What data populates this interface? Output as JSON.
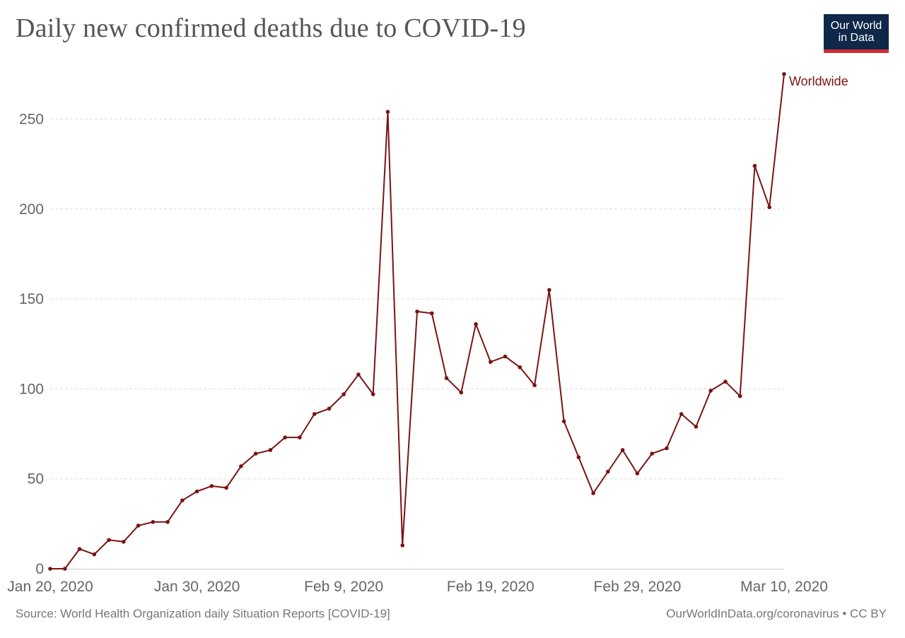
{
  "title": "Daily new confirmed deaths due to COVID-19",
  "logo": {
    "line1": "Our World",
    "line2": "in Data"
  },
  "footer": {
    "source": "Source: World Health Organization daily Situation Reports [COVID-19]",
    "credit": "OurWorldInData.org/coronavirus • CC BY"
  },
  "colors": {
    "line": "#7a1414",
    "grid": "#dddddd",
    "axis": "#cccccc",
    "tick_text": "#666666",
    "logo_bg": "#0f2849",
    "logo_bar": "#d42b32"
  },
  "chart_data": {
    "type": "line",
    "title": "Daily new confirmed deaths due to COVID-19",
    "xlabel": "",
    "ylabel": "",
    "ylim": [
      0,
      275
    ],
    "yticks": [
      0,
      50,
      100,
      150,
      200,
      250
    ],
    "grid": "horizontal dashed",
    "legend": "inline label at line end",
    "x_ticks": [
      "Jan 20, 2020",
      "Jan 30, 2020",
      "Feb 9, 2020",
      "Feb 19, 2020",
      "Feb 29, 2020",
      "Mar 10, 2020"
    ],
    "x_start": "2020-01-20",
    "x_end": "2020-03-10",
    "series": [
      {
        "name": "Worldwide",
        "color": "#7a1414",
        "values": [
          0,
          0,
          11,
          8,
          16,
          15,
          24,
          26,
          26,
          38,
          43,
          46,
          45,
          57,
          64,
          66,
          73,
          73,
          86,
          89,
          97,
          108,
          97,
          254,
          13,
          143,
          142,
          106,
          98,
          136,
          115,
          118,
          112,
          102,
          155,
          82,
          62,
          42,
          54,
          66,
          53,
          64,
          67,
          86,
          79,
          99,
          104,
          96,
          224,
          201,
          275
        ]
      }
    ]
  }
}
